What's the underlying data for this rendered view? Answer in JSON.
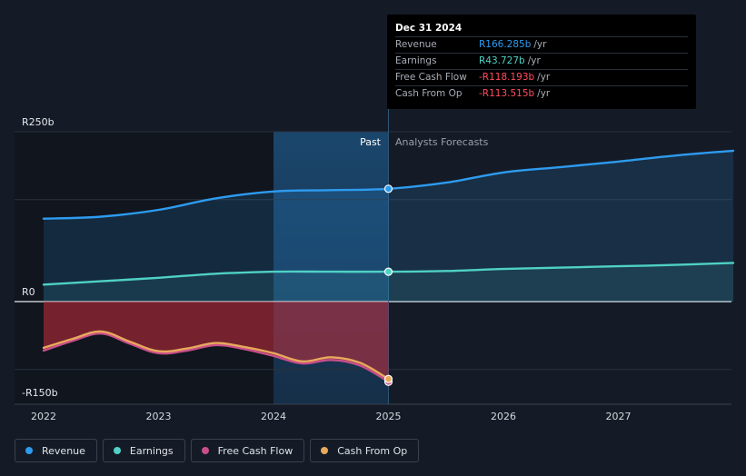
{
  "tooltip": {
    "date": "Dec 31 2024",
    "rows": [
      {
        "name": "Revenue",
        "value": "R166.285b",
        "unit": "/yr",
        "color": "#2e9bef"
      },
      {
        "name": "Earnings",
        "value": "R43.727b",
        "unit": "/yr",
        "color": "#4fd1c5"
      },
      {
        "name": "Free Cash Flow",
        "value": "-R118.193b",
        "unit": "/yr",
        "color": "#ff4d5e"
      },
      {
        "name": "Cash From Op",
        "value": "-R113.515b",
        "unit": "/yr",
        "color": "#ff4d5e"
      }
    ]
  },
  "labels": {
    "past": "Past",
    "forecast": "Analysts Forecasts"
  },
  "legend": [
    {
      "label": "Revenue",
      "color": "#2e9bef"
    },
    {
      "label": "Earnings",
      "color": "#4fd1c5"
    },
    {
      "label": "Free Cash Flow",
      "color": "#c94f8a"
    },
    {
      "label": "Cash From Op",
      "color": "#e8a95c"
    }
  ],
  "chart_data": {
    "type": "line",
    "xlabel": "",
    "ylabel": "",
    "x_ticks": [
      "2022",
      "2023",
      "2024",
      "2025",
      "2026",
      "2027"
    ],
    "y_ticks": [
      {
        "label": "R250b",
        "value": 250
      },
      {
        "label": "R0",
        "value": 0
      },
      {
        "label": "-R150b",
        "value": -150
      }
    ],
    "ylim": [
      -150,
      250
    ],
    "xlim": [
      2022.0,
      2028.0
    ],
    "past_end": 2025.0,
    "series": [
      {
        "name": "Revenue",
        "color": "#2e9bef",
        "x": [
          2022.0,
          2022.5,
          2023.0,
          2023.5,
          2024.0,
          2024.5,
          2025.0,
          2025.5,
          2026.0,
          2026.5,
          2027.0,
          2027.5,
          2028.0
        ],
        "y": [
          122,
          125,
          135,
          152,
          162,
          164,
          166,
          175,
          190,
          198,
          206,
          215,
          222
        ]
      },
      {
        "name": "Earnings",
        "color": "#4fd1c5",
        "x": [
          2022.0,
          2022.5,
          2023.0,
          2023.5,
          2024.0,
          2024.5,
          2025.0,
          2025.5,
          2026.0,
          2026.5,
          2027.0,
          2027.5,
          2028.0
        ],
        "y": [
          25,
          30,
          35,
          41,
          44,
          44,
          44,
          45,
          48,
          50,
          52,
          54,
          57
        ]
      },
      {
        "name": "Free Cash Flow",
        "color": "#c94f8a",
        "x": [
          2022.0,
          2022.25,
          2022.5,
          2022.75,
          2023.0,
          2023.25,
          2023.5,
          2023.75,
          2024.0,
          2024.25,
          2024.5,
          2024.75,
          2025.0
        ],
        "y": [
          -72,
          -58,
          -47,
          -62,
          -76,
          -72,
          -64,
          -70,
          -80,
          -91,
          -86,
          -94,
          -118
        ]
      },
      {
        "name": "Cash From Op",
        "color": "#e8a95c",
        "x": [
          2022.0,
          2022.25,
          2022.5,
          2022.75,
          2023.0,
          2023.25,
          2023.5,
          2023.75,
          2024.0,
          2024.25,
          2024.5,
          2024.75,
          2025.0
        ],
        "y": [
          -68,
          -55,
          -44,
          -59,
          -73,
          -69,
          -61,
          -67,
          -76,
          -88,
          -82,
          -90,
          -114
        ]
      }
    ],
    "grid": true,
    "legend_position": "bottom-left"
  }
}
